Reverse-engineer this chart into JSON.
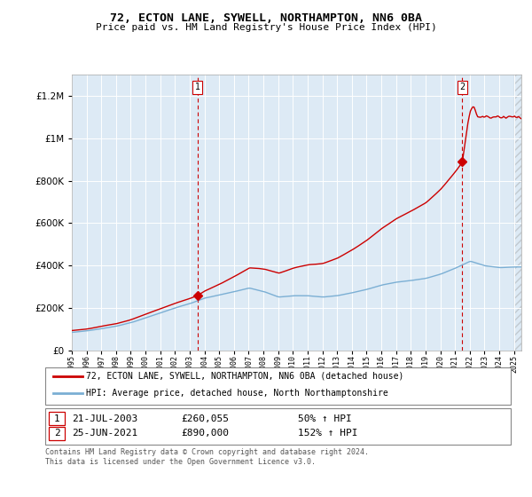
{
  "title": "72, ECTON LANE, SYWELL, NORTHAMPTON, NN6 0BA",
  "subtitle": "Price paid vs. HM Land Registry's House Price Index (HPI)",
  "sale1_date": "21-JUL-2003",
  "sale1_price": 260055,
  "sale1_label": "1",
  "sale1_year": 2003.54,
  "sale2_date": "25-JUN-2021",
  "sale2_price": 890000,
  "sale2_label": "2",
  "sale2_year": 2021.48,
  "legend_line1": "72, ECTON LANE, SYWELL, NORTHAMPTON, NN6 0BA (detached house)",
  "legend_line2": "HPI: Average price, detached house, North Northamptonshire",
  "hpi_color": "#7bafd4",
  "price_color": "#cc0000",
  "dashed_color": "#cc0000",
  "plot_bg": "#ddeaf5",
  "ylim_max": 1300000,
  "ylim_min": 0,
  "xlim_min": 1995.0,
  "xlim_max": 2025.5,
  "footer": "Contains HM Land Registry data © Crown copyright and database right 2024.\nThis data is licensed under the Open Government Licence v3.0."
}
